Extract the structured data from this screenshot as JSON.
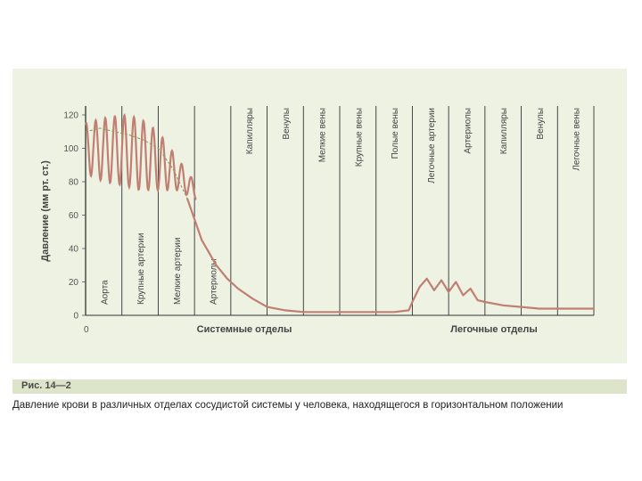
{
  "chart_data": {
    "type": "line",
    "title": "",
    "ylabel": "Давление (мм рт. ст.)",
    "ylim": [
      0,
      120
    ],
    "yticks": [
      "120",
      "100",
      "80",
      "60",
      "40",
      "20",
      "0"
    ],
    "x_origin_label": "0",
    "grid": "vertical separators",
    "group_labels": [
      "Системные отделы",
      "Легочные отделы"
    ],
    "segments": [
      "Аорта",
      "Крупные артерии",
      "Мелкие артерии",
      "Артериолы",
      "Капилляры",
      "Венулы",
      "Мелкие вены",
      "Крупные вены",
      "Полые вены",
      "Легочные артерии",
      "Артериолы",
      "Капилляры",
      "Венулы",
      "Легочные вены"
    ],
    "series": [
      {
        "name": "",
        "x": [
          0,
          0.4,
          0.8,
          1.2,
          1.6,
          2.0,
          2.4,
          2.8,
          3.2,
          3.6,
          3.9,
          4.2,
          4.6,
          5.0,
          5.5,
          6.0,
          6.5,
          7.0,
          7.5,
          8.0,
          8.5,
          8.9,
          9.0,
          9.2,
          9.4,
          9.6,
          9.8,
          10.0,
          10.2,
          10.4,
          10.6,
          10.8,
          11.0,
          11.5,
          12.0,
          12.5,
          13.0,
          14.0
        ],
        "values": [
          110,
          112,
          110,
          108,
          105,
          100,
          88,
          70,
          45,
          30,
          22,
          16,
          10,
          5,
          3,
          2,
          2,
          2,
          2,
          2,
          2,
          3,
          8,
          17,
          22,
          15,
          21,
          14,
          20,
          12,
          16,
          9,
          8,
          6,
          5,
          4,
          4,
          4
        ]
      }
    ],
    "max_min": {
      "x": [
        0,
        0.5,
        1.0,
        1.5,
        2.0,
        2.5,
        3.0
      ],
      "max": [
        115,
        118,
        120,
        118,
        110,
        95,
        80
      ],
      "min": [
        85,
        80,
        78,
        75,
        75,
        75,
        70
      ]
    }
  },
  "caption": {
    "label": "Рис. 14—2",
    "text": "Давление крови в различных отделах сосудистой системы у человека, находящегося в горизонтальном положении"
  },
  "colors": {
    "panel": "#eef2e3",
    "curve": "#c07f72",
    "dashed": "#8e9a5f",
    "caption_bar": "#dde4c9"
  }
}
